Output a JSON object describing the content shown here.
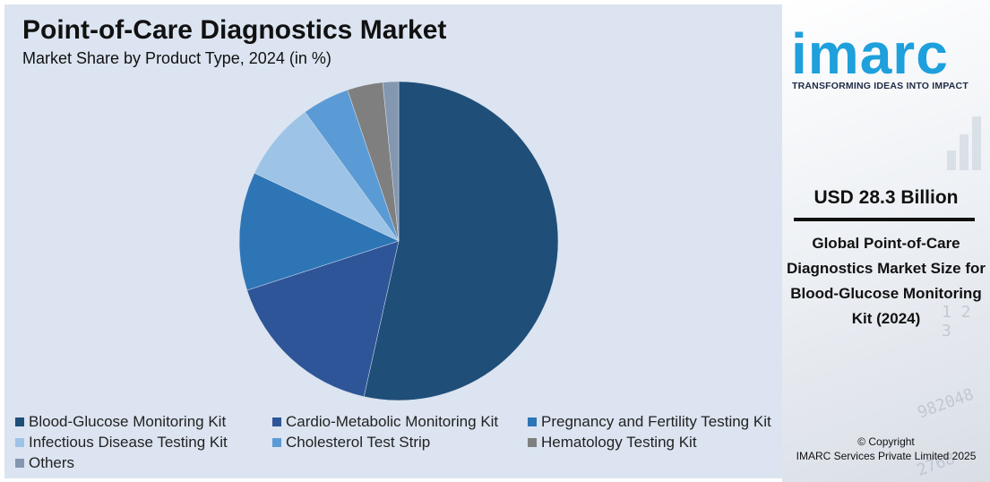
{
  "chart_data": {
    "type": "pie",
    "title": "Point-of-Care Diagnostics Market",
    "subtitle": "Market Share by Product Type, 2024 (in %)",
    "categories": [
      "Blood-Glucose Monitoring Kit",
      "Cardio-Metabolic Monitoring Kit",
      "Pregnancy and Fertility Testing Kit",
      "Infectious Disease Testing Kit",
      "Cholesterol Test Strip",
      "Hematology Testing Kit",
      "Others"
    ],
    "values": [
      53.5,
      16.5,
      12.0,
      8.0,
      4.8,
      3.6,
      1.6
    ],
    "colors": [
      "#1f4e79",
      "#2e5597",
      "#2e75b6",
      "#9dc3e6",
      "#5b9bd5",
      "#7f7f7f",
      "#8497b0"
    ],
    "start_angle_deg": 0,
    "direction": "clockwise",
    "legend_position": "bottom"
  },
  "brand": {
    "logo": "imarc",
    "tagline": "TRANSFORMING IDEAS INTO IMPACT",
    "logo_color": "#1ea0dc"
  },
  "highlight": {
    "value": "USD 28.3 Billion",
    "caption": "Global Point-of-Care Diagnostics Market Size for Blood-Glucose Monitoring Kit (2024)"
  },
  "footer": {
    "copyright_line1": "© Copyright",
    "copyright_line2": "IMARC Services Private Limited 2025"
  }
}
